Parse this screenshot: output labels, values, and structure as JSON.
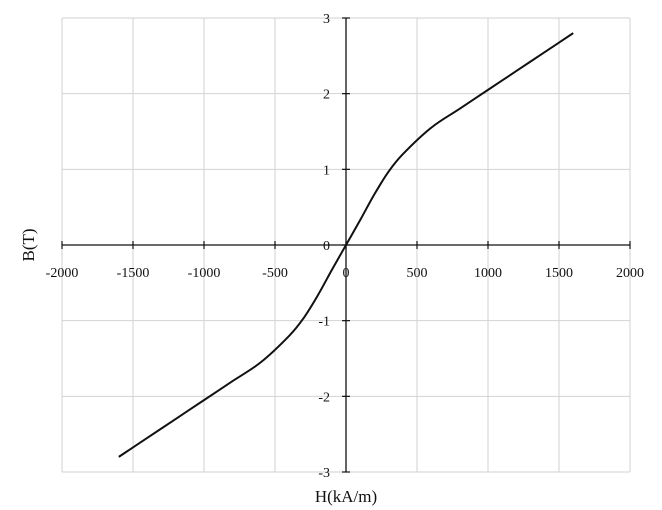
{
  "chart_data": {
    "type": "line",
    "title": "",
    "xlabel": "H(kA/m)",
    "ylabel": "B(T)",
    "xlim": [
      -2000,
      2000
    ],
    "ylim": [
      -3,
      3
    ],
    "xticks": [
      -2000,
      -1500,
      -1000,
      -500,
      0,
      500,
      1000,
      1500,
      2000
    ],
    "yticks": [
      -3,
      -2,
      -1,
      0,
      1,
      2,
      3
    ],
    "xtick_labels": [
      "-2000",
      "-1500",
      "-1000",
      "-500",
      "0",
      "500",
      "1000",
      "1500",
      "2000"
    ],
    "ytick_labels": [
      "-3",
      "-2",
      "-1",
      "0",
      "1",
      "2",
      "3"
    ],
    "grid": true,
    "axes_cross_at_origin": true,
    "series": [
      {
        "color": "#111111",
        "x": [
          -1600,
          -1400,
          -1200,
          -1000,
          -800,
          -600,
          -400,
          -300,
          -200,
          -100,
          0,
          100,
          200,
          300,
          400,
          600,
          800,
          1000,
          1200,
          1400,
          1600
        ],
        "y": [
          -2.8,
          -2.55,
          -2.3,
          -2.05,
          -1.8,
          -1.55,
          -1.2,
          -0.97,
          -0.67,
          -0.33,
          0,
          0.33,
          0.67,
          0.97,
          1.2,
          1.55,
          1.8,
          2.05,
          2.3,
          2.55,
          2.8
        ]
      }
    ]
  }
}
